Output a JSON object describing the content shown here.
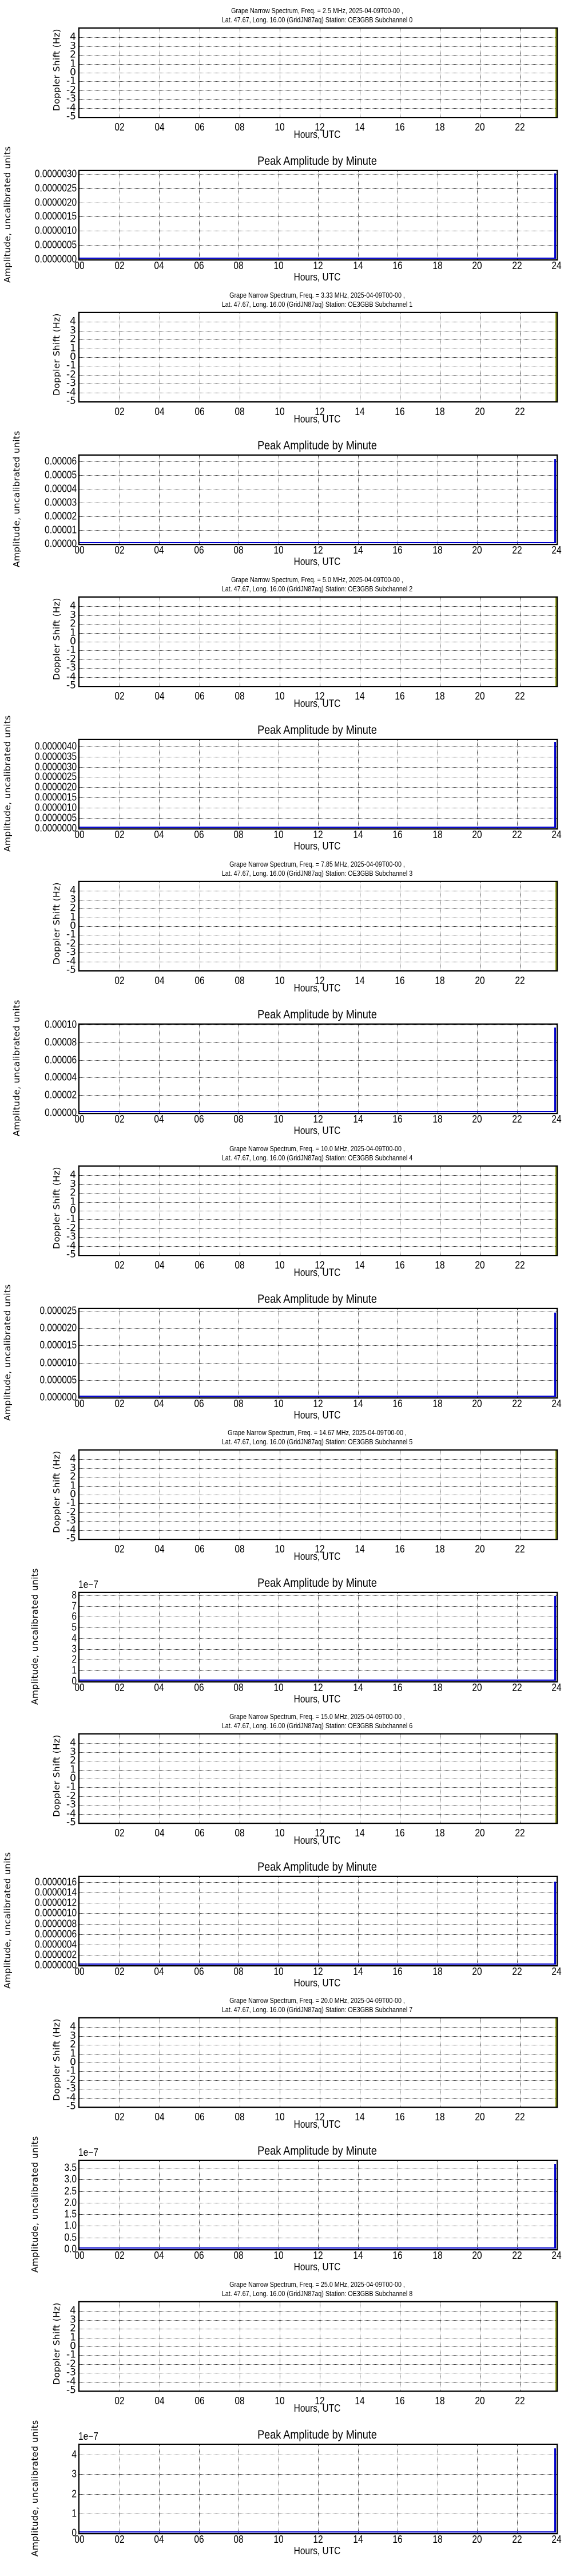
{
  "common": {
    "date": "2025-04-09T00-00",
    "location_line": "Lat.  47.67, Long.  16.00 (GridJN87aq) Station: OE3GBB",
    "spectrum_ylabel": "Doppler Shift (Hz)",
    "amp_ylabel": "Amplitude, uncalibrated units",
    "xlabel": "Hours, UTC",
    "amp_title": "Peak Amplitude by Minute",
    "spectrum_yticks": [
      "4",
      "3",
      "2",
      "1",
      "0",
      "-1",
      "-2",
      "-3",
      "-4",
      "-5"
    ],
    "spectrum_xticks": [
      "02",
      "04",
      "06",
      "08",
      "10",
      "12",
      "14",
      "16",
      "18",
      "20",
      "22"
    ],
    "amp_xticks": [
      "00",
      "02",
      "04",
      "06",
      "08",
      "10",
      "12",
      "14",
      "16",
      "18",
      "20",
      "22",
      "24"
    ],
    "colors": {
      "amplitude_line": "#0000cc",
      "spectrum_edge": "#8a9a10",
      "grid": "#333333"
    }
  },
  "panels": [
    {
      "spectrum_title_1": "Grape Narrow Spectrum, Freq. = 2.5 MHz, 2025-04-09T00-00 ,",
      "spectrum_title_2": "Lat.  47.67, Long.  16.00 (GridJN87aq) Station: OE3GBB Subchannel 0",
      "amp_offset": "",
      "amp_yticks": [
        "0.0000030",
        "0.0000025",
        "0.0000020",
        "0.0000015",
        "0.0000010",
        "0.0000005",
        "0.0000000"
      ]
    },
    {
      "spectrum_title_1": "Grape Narrow Spectrum, Freq. = 3.33 MHz, 2025-04-09T00-00 ,",
      "spectrum_title_2": "Lat.  47.67, Long.  16.00 (GridJN87aq) Station: OE3GBB Subchannel 1",
      "amp_offset": "",
      "amp_yticks": [
        "0.00006",
        "0.00005",
        "0.00004",
        "0.00003",
        "0.00002",
        "0.00001",
        "0.00000"
      ]
    },
    {
      "spectrum_title_1": "Grape Narrow Spectrum, Freq. = 5.0 MHz, 2025-04-09T00-00 ,",
      "spectrum_title_2": "Lat.  47.67, Long.  16.00 (GridJN87aq) Station: OE3GBB Subchannel 2",
      "amp_offset": "",
      "amp_yticks": [
        "0.0000040",
        "0.0000035",
        "0.0000030",
        "0.0000025",
        "0.0000020",
        "0.0000015",
        "0.0000010",
        "0.0000005",
        "0.0000000"
      ]
    },
    {
      "spectrum_title_1": "Grape Narrow Spectrum, Freq. = 7.85 MHz, 2025-04-09T00-00 ,",
      "spectrum_title_2": "Lat.  47.67, Long.  16.00 (GridJN87aq) Station: OE3GBB Subchannel 3",
      "amp_offset": "",
      "amp_yticks": [
        "0.00010",
        "0.00008",
        "0.00006",
        "0.00004",
        "0.00002",
        "0.00000"
      ]
    },
    {
      "spectrum_title_1": "Grape Narrow Spectrum, Freq. = 10.0 MHz, 2025-04-09T00-00 ,",
      "spectrum_title_2": "Lat.  47.67, Long.  16.00 (GridJN87aq) Station: OE3GBB Subchannel 4",
      "amp_offset": "",
      "amp_yticks": [
        "0.000025",
        "0.000020",
        "0.000015",
        "0.000010",
        "0.000005",
        "0.000000"
      ]
    },
    {
      "spectrum_title_1": "Grape Narrow Spectrum, Freq. = 14.67 MHz, 2025-04-09T00-00 ,",
      "spectrum_title_2": "Lat.  47.67, Long.  16.00 (GridJN87aq) Station: OE3GBB Subchannel 5",
      "amp_offset": "1e−7",
      "amp_yticks": [
        "8",
        "7",
        "6",
        "5",
        "4",
        "3",
        "2",
        "1",
        "0"
      ]
    },
    {
      "spectrum_title_1": "Grape Narrow Spectrum, Freq. = 15.0 MHz, 2025-04-09T00-00 ,",
      "spectrum_title_2": "Lat.  47.67, Long.  16.00 (GridJN87aq) Station: OE3GBB Subchannel 6",
      "amp_offset": "",
      "amp_yticks": [
        "0.0000016",
        "0.0000014",
        "0.0000012",
        "0.0000010",
        "0.0000008",
        "0.0000006",
        "0.0000004",
        "0.0000002",
        "0.0000000"
      ]
    },
    {
      "spectrum_title_1": "Grape Narrow Spectrum, Freq. = 20.0 MHz, 2025-04-09T00-00 ,",
      "spectrum_title_2": "Lat.  47.67, Long.  16.00 (GridJN87aq) Station: OE3GBB Subchannel 7",
      "amp_offset": "1e−7",
      "amp_yticks": [
        "3.5",
        "3.0",
        "2.5",
        "2.0",
        "1.5",
        "1.0",
        "0.5",
        "0.0"
      ]
    },
    {
      "spectrum_title_1": "Grape Narrow Spectrum, Freq. = 25.0 MHz, 2025-04-09T00-00 ,",
      "spectrum_title_2": "Lat.  47.67, Long.  16.00 (GridJN87aq) Station: OE3GBB Subchannel 8",
      "amp_offset": "1e−7",
      "amp_yticks": [
        "4",
        "3",
        "2",
        "1",
        "0"
      ]
    }
  ],
  "chart_data": [
    {
      "type": "heatmap",
      "title": "Grape Narrow Spectrum, Freq. = 2.5 MHz, 2025-04-09T00-00 , Lat.  47.67, Long.  16.00 (GridJN87aq) Station: OE3GBB Subchannel 0",
      "xlabel": "Hours, UTC",
      "ylabel": "Doppler Shift (Hz)",
      "ylim": [
        -5,
        5
      ],
      "xlim": [
        0,
        23.8
      ],
      "x_ticks": [
        "02",
        "04",
        "06",
        "08",
        "10",
        "12",
        "14",
        "16",
        "18",
        "20",
        "22"
      ],
      "y_ticks": [
        4,
        3,
        2,
        1,
        0,
        -1,
        -2,
        -3,
        -4,
        -5
      ],
      "grid": true,
      "note": "empty; thin data strip only at right edge"
    },
    {
      "type": "line",
      "title": "Peak Amplitude by Minute",
      "subchannel": 0,
      "xlabel": "Hours, UTC",
      "ylabel": "Amplitude, uncalibrated units",
      "ylim": [
        0,
        3.1e-06
      ],
      "x": [
        0,
        23.9,
        23.95,
        24
      ],
      "values": [
        0.0,
        0.0,
        1.4e-06,
        3e-06
      ],
      "grid": true
    },
    {
      "type": "heatmap",
      "title": "Grape Narrow Spectrum, Freq. = 3.33 MHz, 2025-04-09T00-00 , Lat.  47.67, Long.  16.00 (GridJN87aq) Station: OE3GBB Subchannel 1",
      "xlabel": "Hours, UTC",
      "ylabel": "Doppler Shift (Hz)",
      "ylim": [
        -5,
        5
      ],
      "grid": true
    },
    {
      "type": "line",
      "title": "Peak Amplitude by Minute",
      "subchannel": 1,
      "xlabel": "Hours, UTC",
      "ylabel": "Amplitude, uncalibrated units",
      "ylim": [
        0,
        6.4e-05
      ],
      "x": [
        0,
        23.95,
        24
      ],
      "values": [
        0.0,
        0.0,
        6.1e-05
      ],
      "grid": true
    },
    {
      "type": "heatmap",
      "title": "Grape Narrow Spectrum, Freq. = 5.0 MHz, 2025-04-09T00-00 , Lat.  47.67, Long.  16.00 (GridJN87aq) Station: OE3GBB Subchannel 2",
      "xlabel": "Hours, UTC",
      "ylabel": "Doppler Shift (Hz)",
      "ylim": [
        -5,
        5
      ],
      "grid": true
    },
    {
      "type": "line",
      "title": "Peak Amplitude by Minute",
      "subchannel": 2,
      "xlabel": "Hours, UTC",
      "ylabel": "Amplitude, uncalibrated units",
      "ylim": [
        0,
        4.3e-06
      ],
      "x": [
        0,
        23.95,
        24
      ],
      "values": [
        0.0,
        0.0,
        4.2e-06
      ],
      "grid": true
    },
    {
      "type": "heatmap",
      "title": "Grape Narrow Spectrum, Freq. = 7.85 MHz, 2025-04-09T00-00 , Lat.  47.67, Long.  16.00 (GridJN87aq) Station: OE3GBB Subchannel 3",
      "xlabel": "Hours, UTC",
      "ylabel": "Doppler Shift (Hz)",
      "ylim": [
        -5,
        5
      ],
      "grid": true
    },
    {
      "type": "line",
      "title": "Peak Amplitude by Minute",
      "subchannel": 3,
      "xlabel": "Hours, UTC",
      "ylabel": "Amplitude, uncalibrated units",
      "ylim": [
        0,
        0.0001
      ],
      "x": [
        0,
        23.95,
        24
      ],
      "values": [
        0.0,
        0.0,
        9.6e-05
      ],
      "grid": true
    },
    {
      "type": "heatmap",
      "title": "Grape Narrow Spectrum, Freq. = 10.0 MHz, 2025-04-09T00-00 , Lat.  47.67, Long.  16.00 (GridJN87aq) Station: OE3GBB Subchannel 4",
      "xlabel": "Hours, UTC",
      "ylabel": "Doppler Shift (Hz)",
      "ylim": [
        -5,
        5
      ],
      "grid": true
    },
    {
      "type": "line",
      "title": "Peak Amplitude by Minute",
      "subchannel": 4,
      "xlabel": "Hours, UTC",
      "ylabel": "Amplitude, uncalibrated units",
      "ylim": [
        0,
        2.55e-05
      ],
      "x": [
        0,
        23.95,
        24
      ],
      "values": [
        0.0,
        0.0,
        2.44e-05
      ],
      "grid": true
    },
    {
      "type": "heatmap",
      "title": "Grape Narrow Spectrum, Freq. = 14.67 MHz, 2025-04-09T00-00 , Lat.  47.67, Long.  16.00 (GridJN87aq) Station: OE3GBB Subchannel 5",
      "xlabel": "Hours, UTC",
      "ylabel": "Doppler Shift (Hz)",
      "ylim": [
        -5,
        5
      ],
      "grid": true
    },
    {
      "type": "line",
      "title": "Peak Amplitude by Minute",
      "subchannel": 5,
      "xlabel": "Hours, UTC",
      "ylabel": "Amplitude, uncalibrated units",
      "y_offset": "1e-7",
      "ylim": [
        0,
        8.2
      ],
      "x": [
        0,
        23.95,
        24
      ],
      "values": [
        0.0,
        0.0,
        7.9
      ],
      "grid": true
    },
    {
      "type": "heatmap",
      "title": "Grape Narrow Spectrum, Freq. = 15.0 MHz, 2025-04-09T00-00 , Lat.  47.67, Long.  16.00 (GridJN87aq) Station: OE3GBB Subchannel 6",
      "xlabel": "Hours, UTC",
      "ylabel": "Doppler Shift (Hz)",
      "ylim": [
        -5,
        5
      ],
      "grid": true
    },
    {
      "type": "line",
      "title": "Peak Amplitude by Minute",
      "subchannel": 6,
      "xlabel": "Hours, UTC",
      "ylabel": "Amplitude, uncalibrated units",
      "ylim": [
        0,
        1.7e-06
      ],
      "x": [
        0,
        23.95,
        24
      ],
      "values": [
        0.0,
        0.0,
        1.6e-06
      ],
      "grid": true
    },
    {
      "type": "heatmap",
      "title": "Grape Narrow Spectrum, Freq. = 20.0 MHz, 2025-04-09T00-00 , Lat.  47.67, Long.  16.00 (GridJN87aq) Station: OE3GBB Subchannel 7",
      "xlabel": "Hours, UTC",
      "ylabel": "Doppler Shift (Hz)",
      "ylim": [
        -5,
        5
      ],
      "grid": true
    },
    {
      "type": "line",
      "title": "Peak Amplitude by Minute",
      "subchannel": 7,
      "xlabel": "Hours, UTC",
      "ylabel": "Amplitude, uncalibrated units",
      "y_offset": "1e-7",
      "ylim": [
        0,
        3.8
      ],
      "x": [
        0,
        23.95,
        24
      ],
      "values": [
        0.0,
        0.0,
        3.65
      ],
      "grid": true
    },
    {
      "type": "heatmap",
      "title": "Grape Narrow Spectrum, Freq. = 25.0 MHz, 2025-04-09T00-00 , Lat.  47.67, Long.  16.00 (GridJN87aq) Station: OE3GBB Subchannel 8",
      "xlabel": "Hours, UTC",
      "ylabel": "Doppler Shift (Hz)",
      "ylim": [
        -5,
        5
      ],
      "grid": true
    },
    {
      "type": "line",
      "title": "Peak Amplitude by Minute",
      "subchannel": 8,
      "xlabel": "Hours, UTC",
      "ylabel": "Amplitude, uncalibrated units",
      "y_offset": "1e-7",
      "ylim": [
        0,
        4.5
      ],
      "x": [
        0,
        23.95,
        24
      ],
      "values": [
        0.0,
        0.0,
        4.3
      ],
      "grid": true
    }
  ]
}
